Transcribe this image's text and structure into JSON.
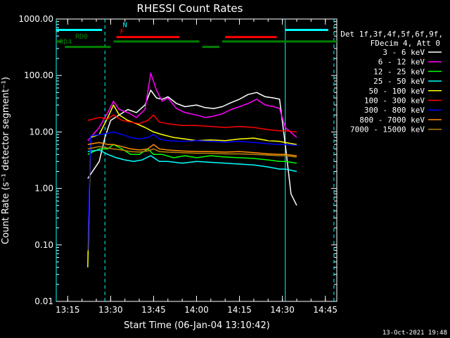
{
  "chart_data": {
    "type": "line",
    "title": "RHESSI Count Rates",
    "xlabel": "Start Time (06-Jan-04 13:10:42)",
    "ylabel": "Count Rate (s⁻¹ detector segment⁻¹)",
    "xlim": [
      "13:11",
      "14:49"
    ],
    "ylim": [
      0.01,
      1000
    ],
    "yscale": "log",
    "x_ticks": [
      "13:15",
      "13:30",
      "13:45",
      "14:00",
      "14:15",
      "14:30",
      "14:45"
    ],
    "y_ticks": [
      "1000.00",
      "100.00",
      "10.00",
      "1.00",
      "0.10",
      "0.01"
    ],
    "legend": {
      "placement": "right",
      "header": [
        "Det 1f,3f,4f,5f,6f,9f,",
        "FDecim 4, Att 0"
      ]
    },
    "series": [
      {
        "name": "3 - 6 keV",
        "color": "#ffffff",
        "points": [
          [
            "13:22",
            1.5
          ],
          [
            "13:26",
            3
          ],
          [
            "13:28",
            8
          ],
          [
            "13:30",
            16
          ],
          [
            "13:33",
            20
          ],
          [
            "13:36",
            25
          ],
          [
            "13:39",
            22
          ],
          [
            "13:42",
            30
          ],
          [
            "13:44",
            55
          ],
          [
            "13:46",
            40
          ],
          [
            "13:48",
            38
          ],
          [
            "13:50",
            42
          ],
          [
            "13:53",
            32
          ],
          [
            "13:56",
            28
          ],
          [
            "14:00",
            30
          ],
          [
            "14:03",
            27
          ],
          [
            "14:06",
            26
          ],
          [
            "14:09",
            28
          ],
          [
            "14:12",
            33
          ],
          [
            "14:15",
            38
          ],
          [
            "14:18",
            46
          ],
          [
            "14:21",
            50
          ],
          [
            "14:24",
            42
          ],
          [
            "14:27",
            40
          ],
          [
            "14:29",
            38
          ],
          [
            "14:31",
            6
          ],
          [
            "14:33",
            0.8
          ],
          [
            "14:35",
            0.5
          ]
        ]
      },
      {
        "name": "6 - 12 keV",
        "color": "#ff00ff",
        "points": [
          [
            "13:22",
            7
          ],
          [
            "13:26",
            12
          ],
          [
            "13:29",
            22
          ],
          [
            "13:31",
            35
          ],
          [
            "13:33",
            25
          ],
          [
            "13:36",
            22
          ],
          [
            "13:39",
            18
          ],
          [
            "13:42",
            25
          ],
          [
            "13:44",
            110
          ],
          [
            "13:46",
            55
          ],
          [
            "13:48",
            35
          ],
          [
            "13:50",
            40
          ],
          [
            "13:53",
            26
          ],
          [
            "13:56",
            22
          ],
          [
            "14:00",
            20
          ],
          [
            "14:03",
            18
          ],
          [
            "14:06",
            19
          ],
          [
            "14:09",
            21
          ],
          [
            "14:12",
            25
          ],
          [
            "14:15",
            28
          ],
          [
            "14:18",
            32
          ],
          [
            "14:21",
            38
          ],
          [
            "14:24",
            30
          ],
          [
            "14:27",
            28
          ],
          [
            "14:29",
            26
          ],
          [
            "14:31",
            12
          ],
          [
            "14:35",
            8
          ]
        ]
      },
      {
        "name": "12 - 25 keV",
        "color": "#00ff00",
        "points": [
          [
            "13:22",
            4
          ],
          [
            "13:26",
            5
          ],
          [
            "13:29",
            5
          ],
          [
            "13:31",
            6
          ],
          [
            "13:34",
            5
          ],
          [
            "13:37",
            4
          ],
          [
            "13:40",
            4
          ],
          [
            "13:43",
            5
          ],
          [
            "13:45",
            4
          ],
          [
            "13:48",
            4
          ],
          [
            "13:52",
            3.5
          ],
          [
            "13:56",
            3.8
          ],
          [
            "14:00",
            3.5
          ],
          [
            "14:05",
            3.8
          ],
          [
            "14:10",
            3.6
          ],
          [
            "14:15",
            3.5
          ],
          [
            "14:20",
            3.4
          ],
          [
            "14:25",
            3.2
          ],
          [
            "14:29",
            3
          ],
          [
            "14:31",
            3
          ],
          [
            "14:35",
            2.8
          ]
        ]
      },
      {
        "name": "25 - 50 keV",
        "color": "#00ffff",
        "points": [
          [
            "13:22",
            4.5
          ],
          [
            "13:26",
            4.8
          ],
          [
            "13:29",
            4
          ],
          [
            "13:32",
            3.5
          ],
          [
            "13:35",
            3.2
          ],
          [
            "13:38",
            3
          ],
          [
            "13:41",
            3.2
          ],
          [
            "13:44",
            3.8
          ],
          [
            "13:47",
            3
          ],
          [
            "13:50",
            3
          ],
          [
            "13:55",
            2.8
          ],
          [
            "14:00",
            3
          ],
          [
            "14:05",
            2.9
          ],
          [
            "14:10",
            2.8
          ],
          [
            "14:15",
            2.7
          ],
          [
            "14:20",
            2.6
          ],
          [
            "14:25",
            2.4
          ],
          [
            "14:29",
            2.2
          ],
          [
            "14:31",
            2.2
          ],
          [
            "14:35",
            2
          ]
        ]
      },
      {
        "name": "50 - 100 keV",
        "color": "#ffff00",
        "points": [
          [
            "13:22",
            0.04
          ],
          [
            "13:23",
            8
          ],
          [
            "13:26",
            9
          ],
          [
            "13:29",
            18
          ],
          [
            "13:31",
            30
          ],
          [
            "13:33",
            20
          ],
          [
            "13:36",
            16
          ],
          [
            "13:39",
            14
          ],
          [
            "13:42",
            12
          ],
          [
            "13:45",
            10
          ],
          [
            "13:48",
            9
          ],
          [
            "13:52",
            8
          ],
          [
            "13:56",
            7.5
          ],
          [
            "14:00",
            7
          ],
          [
            "14:05",
            7.2
          ],
          [
            "14:10",
            7
          ],
          [
            "14:15",
            7.5
          ],
          [
            "14:20",
            7.8
          ],
          [
            "14:25",
            7
          ],
          [
            "14:29",
            6.8
          ],
          [
            "14:31",
            6.5
          ],
          [
            "14:35",
            6
          ]
        ]
      },
      {
        "name": "100 - 300 keV",
        "color": "#ff0000",
        "points": [
          [
            "13:22",
            16
          ],
          [
            "13:26",
            18
          ],
          [
            "13:29",
            17
          ],
          [
            "13:31",
            20
          ],
          [
            "13:34",
            16
          ],
          [
            "13:37",
            15
          ],
          [
            "13:40",
            14
          ],
          [
            "13:43",
            16
          ],
          [
            "13:45",
            20
          ],
          [
            "13:47",
            15
          ],
          [
            "13:50",
            14
          ],
          [
            "13:55",
            13
          ],
          [
            "14:00",
            13
          ],
          [
            "14:05",
            12.5
          ],
          [
            "14:10",
            12
          ],
          [
            "14:15",
            12.5
          ],
          [
            "14:20",
            12
          ],
          [
            "14:25",
            11
          ],
          [
            "14:29",
            10.5
          ],
          [
            "14:31",
            10.5
          ],
          [
            "14:35",
            10
          ]
        ]
      },
      {
        "name": "300 - 800 keV",
        "color": "#0000ff",
        "points": [
          [
            "13:22",
            0.08
          ],
          [
            "13:23",
            8.5
          ],
          [
            "13:26",
            9
          ],
          [
            "13:29",
            9.5
          ],
          [
            "13:31",
            10
          ],
          [
            "13:34",
            9
          ],
          [
            "13:37",
            8
          ],
          [
            "13:40",
            7.5
          ],
          [
            "13:43",
            8
          ],
          [
            "13:45",
            9
          ],
          [
            "13:47",
            7.5
          ],
          [
            "13:50",
            7
          ],
          [
            "13:55",
            6.8
          ],
          [
            "14:00",
            7
          ],
          [
            "14:05",
            6.8
          ],
          [
            "14:10",
            6.6
          ],
          [
            "14:15",
            6.8
          ],
          [
            "14:20",
            6.5
          ],
          [
            "14:25",
            6.2
          ],
          [
            "14:29",
            6
          ],
          [
            "14:31",
            6
          ],
          [
            "14:35",
            5.8
          ]
        ]
      },
      {
        "name": "800 - 7000 keV",
        "color": "#ff8c00",
        "points": [
          [
            "13:22",
            6
          ],
          [
            "13:26",
            6.5
          ],
          [
            "13:29",
            6
          ],
          [
            "13:31",
            6
          ],
          [
            "13:34",
            5.5
          ],
          [
            "13:37",
            5
          ],
          [
            "13:40",
            4.8
          ],
          [
            "13:43",
            5
          ],
          [
            "13:45",
            6
          ],
          [
            "13:47",
            5
          ],
          [
            "13:50",
            4.8
          ],
          [
            "13:55",
            4.6
          ],
          [
            "14:00",
            4.5
          ],
          [
            "14:05",
            4.5
          ],
          [
            "14:10",
            4.4
          ],
          [
            "14:15",
            4.5
          ],
          [
            "14:20",
            4.3
          ],
          [
            "14:25",
            4.1
          ],
          [
            "14:29",
            4
          ],
          [
            "14:31",
            4
          ],
          [
            "14:35",
            3.8
          ]
        ]
      },
      {
        "name": "7000 - 15000 keV",
        "color": "#b8860b",
        "points": [
          [
            "13:22",
            5
          ],
          [
            "13:26",
            5.5
          ],
          [
            "13:29",
            5.2
          ],
          [
            "13:31",
            5
          ],
          [
            "13:34",
            4.8
          ],
          [
            "13:37",
            4.5
          ],
          [
            "13:40",
            4.4
          ],
          [
            "13:43",
            4.6
          ],
          [
            "13:45",
            5
          ],
          [
            "13:47",
            4.5
          ],
          [
            "13:50",
            4.4
          ],
          [
            "13:55",
            4.3
          ],
          [
            "14:00",
            4.2
          ],
          [
            "14:05",
            4.2
          ],
          [
            "14:10",
            4.1
          ],
          [
            "14:15",
            4.1
          ],
          [
            "14:20",
            4
          ],
          [
            "14:25",
            3.9
          ],
          [
            "14:29",
            3.8
          ],
          [
            "14:31",
            3.8
          ],
          [
            "14:35",
            3.6
          ]
        ]
      }
    ],
    "annotations": {
      "flags": [
        {
          "label": "N",
          "color": "#00ffff",
          "level": 640,
          "segments": [
            [
              "13:11",
              "13:27"
            ],
            [
              "14:31",
              "14:46"
            ]
          ]
        },
        {
          "label": "F",
          "color": "#ff0000",
          "level": 480,
          "segments": [
            [
              "13:32",
              "13:54"
            ],
            [
              "14:10",
              "14:28"
            ]
          ]
        },
        {
          "label": "RD0",
          "color": "#008000",
          "level": 400,
          "segments": [
            [
              "13:11",
              "13:13"
            ],
            [
              "13:31",
              "14:01"
            ],
            [
              "14:09",
              "14:49"
            ]
          ]
        },
        {
          "label": "RD4",
          "color": "#008000",
          "level": 320,
          "segments": [
            [
              "13:14",
              "13:30"
            ],
            [
              "14:02",
              "14:08"
            ]
          ]
        }
      ],
      "vlines": [
        {
          "time": "13:11",
          "color": "#00ffff",
          "style": "solid"
        },
        {
          "time": "13:28",
          "color": "#00ffff",
          "style": "dashed"
        },
        {
          "time": "14:31",
          "color": "#00ffff",
          "style": "solid"
        },
        {
          "time": "14:48",
          "color": "#00ffff",
          "style": "dashed"
        }
      ]
    },
    "footer_date": "13-Oct-2021 19:48"
  }
}
